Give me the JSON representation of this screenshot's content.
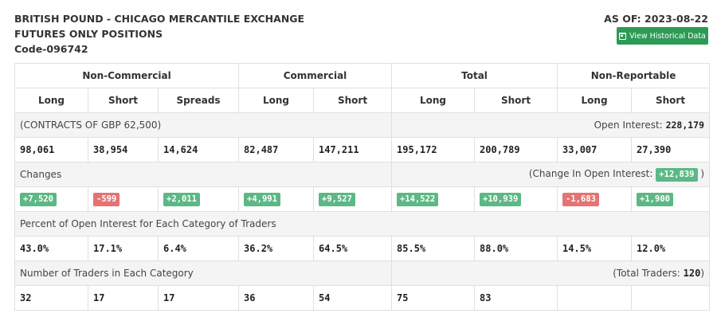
{
  "header": {
    "line1": "BRITISH POUND - CHICAGO MERCANTILE EXCHANGE",
    "line2": "FUTURES ONLY POSITIONS",
    "code": "Code-096742",
    "as_of": "AS OF: 2023-08-22",
    "historical_button": "View Historical Data"
  },
  "groups": [
    "Non-Commercial",
    "Commercial",
    "Total",
    "Non-Reportable"
  ],
  "subheaders": [
    "Long",
    "Short",
    "Spreads",
    "Long",
    "Short",
    "Long",
    "Short",
    "Long",
    "Short"
  ],
  "contracts": {
    "label": "(CONTRACTS OF GBP 62,500)",
    "oi_label": "Open Interest:",
    "oi_value": "228,179",
    "values": [
      "98,061",
      "38,954",
      "14,624",
      "82,487",
      "147,211",
      "195,172",
      "200,789",
      "33,007",
      "27,390"
    ]
  },
  "changes": {
    "label": "Changes",
    "oi_label": "(Change In Open Interest:",
    "oi_value": "+12,839",
    "oi_close": ")",
    "values": [
      "+7,520",
      "-599",
      "+2,011",
      "+4,991",
      "+9,527",
      "+14,522",
      "+10,939",
      "-1,683",
      "+1,900"
    ],
    "colors": {
      "positive": "#5cb885",
      "negative": "#e57373"
    }
  },
  "percent": {
    "label": "Percent of Open Interest for Each Category of Traders",
    "values": [
      "43.0%",
      "17.1%",
      "6.4%",
      "36.2%",
      "64.5%",
      "85.5%",
      "88.0%",
      "14.5%",
      "12.0%"
    ]
  },
  "traders": {
    "label": "Number of Traders in Each Category",
    "total_label": "(Total Traders:",
    "total_value": "120",
    "total_close": ")",
    "values": [
      "32",
      "17",
      "17",
      "36",
      "54",
      "75",
      "83",
      "",
      ""
    ]
  },
  "colors": {
    "button": "#2d9a56"
  }
}
